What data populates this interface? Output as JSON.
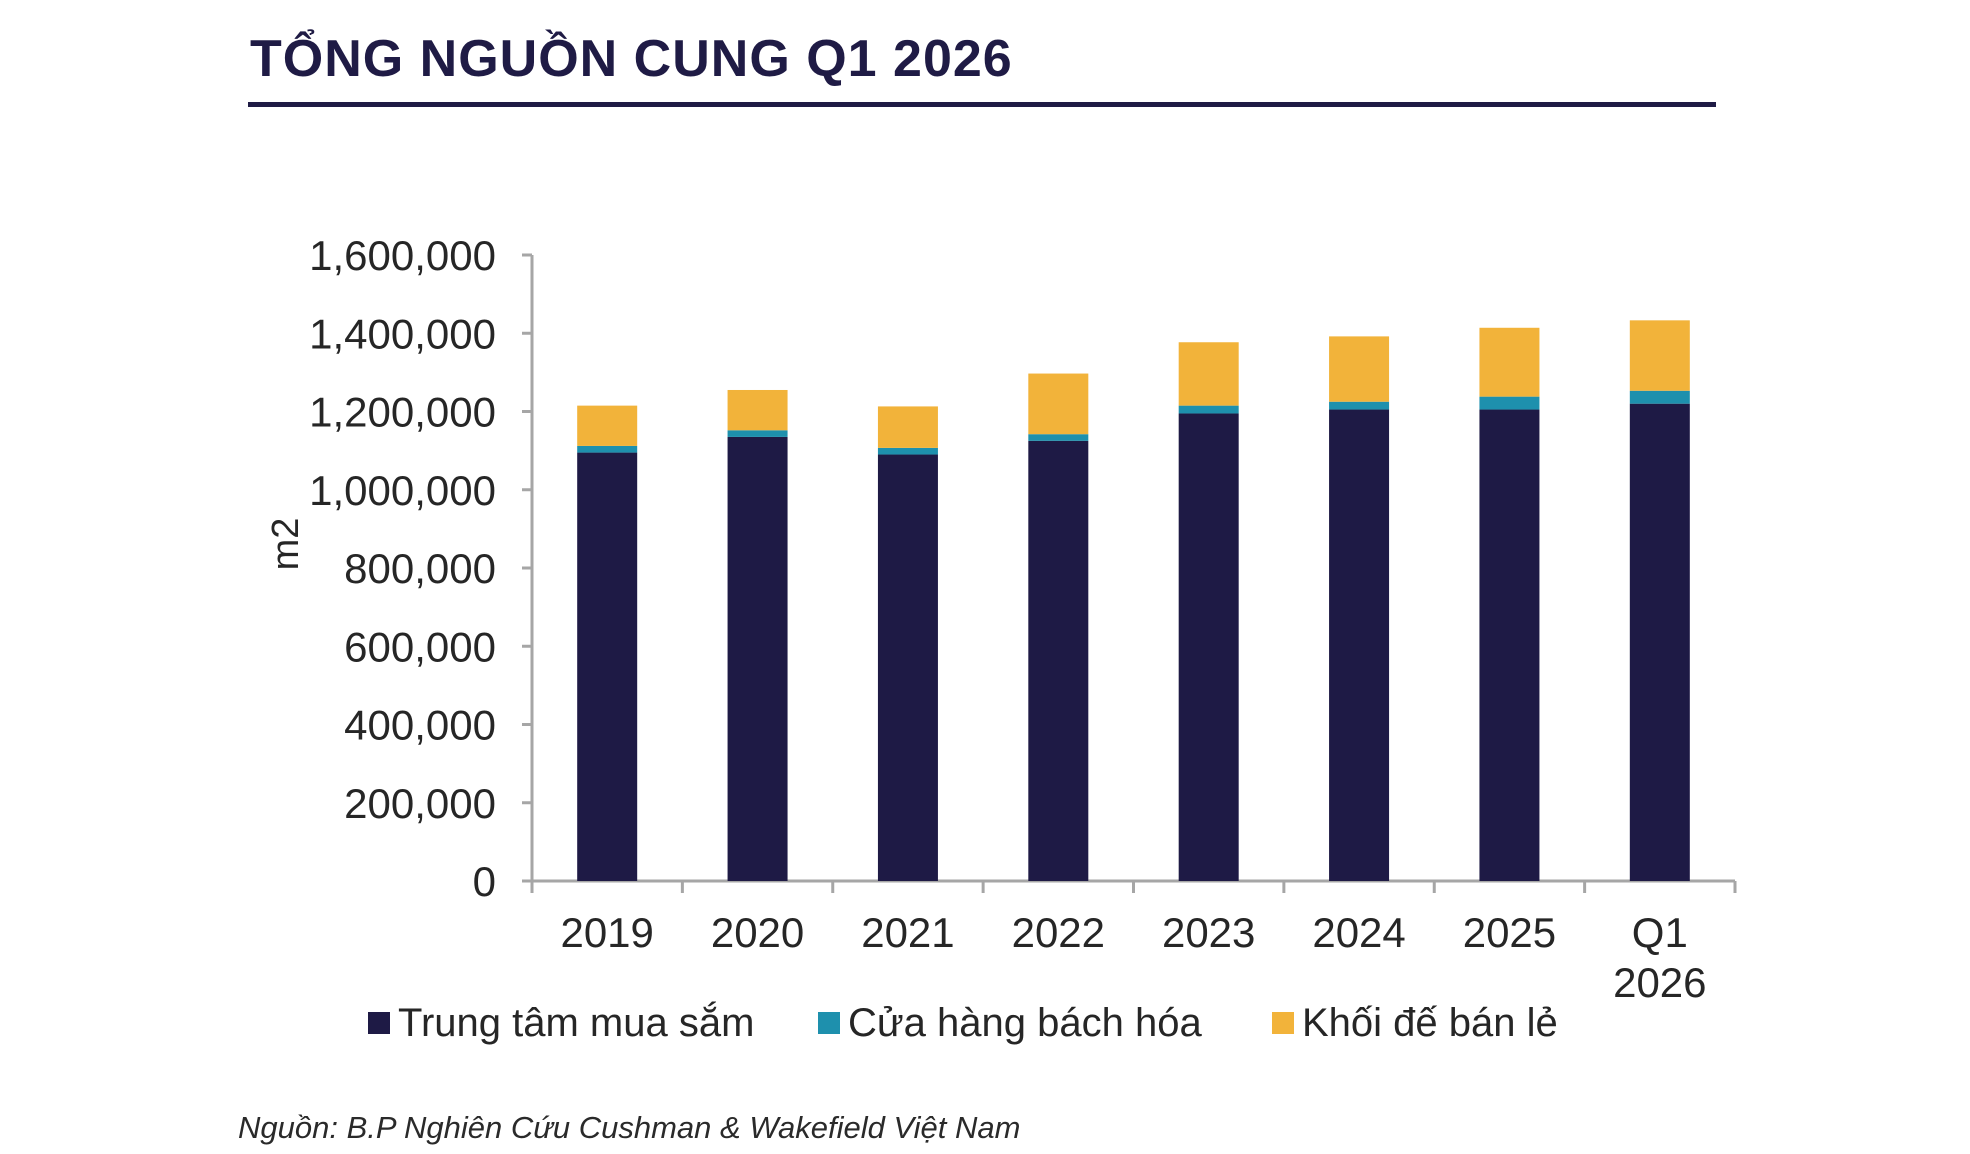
{
  "title": "TỔNG NGUỒN CUNG Q1 2026",
  "source": "Nguồn: B.P Nghiên Cứu Cushman & Wakefield Việt Nam",
  "chart_data": {
    "type": "bar",
    "stacked": true,
    "categories": [
      "2019",
      "2020",
      "2021",
      "2022",
      "2023",
      "2024",
      "2025",
      "Q1\n2026"
    ],
    "ylabel": "m2",
    "xlabel": "",
    "ylim": [
      0,
      1600000
    ],
    "yticks": [
      0,
      200000,
      400000,
      600000,
      800000,
      1000000,
      1200000,
      1400000,
      1600000
    ],
    "ytick_labels": [
      "0",
      "200,000",
      "400,000",
      "600,000",
      "800,000",
      "1,000,000",
      "1,200,000",
      "1,400,000",
      "1,600,000"
    ],
    "grid": false,
    "legend_position": "bottom",
    "series": [
      {
        "name": "Trung tâm mua sắm",
        "color": "#1e1a45",
        "values": [
          1095000,
          1135000,
          1090000,
          1125000,
          1195000,
          1205000,
          1205000,
          1220000
        ]
      },
      {
        "name": "Cửa hàng bách hóa",
        "color": "#1e90ad",
        "values": [
          17000,
          17000,
          17000,
          17000,
          20000,
          20000,
          33000,
          33000
        ]
      },
      {
        "name": "Khối đế bán lẻ",
        "color": "#f2b33a",
        "values": [
          103000,
          103000,
          106000,
          155000,
          162000,
          167000,
          176000,
          180000
        ]
      }
    ]
  }
}
